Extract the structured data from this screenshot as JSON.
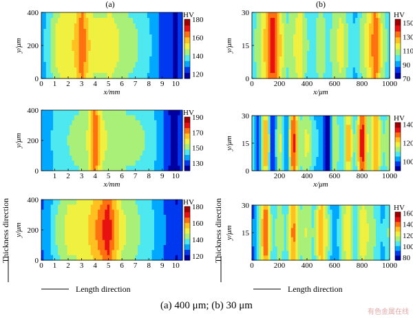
{
  "figure": {
    "labels": [
      "(a)",
      "(b)"
    ],
    "caption": "(a) 400 μm; (b) 30 μm",
    "thickness_label": "Thickness direction",
    "length_label": "Length direction",
    "watermark": "有色金属在线"
  },
  "colorscale": [
    "#0000a0",
    "#0038f0",
    "#00a8ff",
    "#4de8f0",
    "#a8f078",
    "#f0f040",
    "#ffc020",
    "#ff7010",
    "#e81010",
    "#a00000"
  ],
  "chart_data": [
    {
      "id": "a1",
      "type": "heatmap",
      "title": "",
      "xlabel": "x/mm",
      "ylabel": "y/μm",
      "xlim": [
        0,
        10.5
      ],
      "ylim": [
        0,
        400
      ],
      "xticks": [
        0,
        1,
        2,
        3,
        4,
        5,
        6,
        7,
        8,
        9,
        10
      ],
      "yticks": [
        0,
        200,
        400
      ],
      "colorbar": {
        "title": "HV",
        "range": [
          115,
          180
        ],
        "ticks": [
          120,
          140,
          160,
          180
        ]
      },
      "hardness_profile_x": [
        0,
        0.5,
        1,
        1.5,
        2,
        2.5,
        3,
        3.5,
        4,
        4.5,
        5,
        5.5,
        6,
        6.5,
        7,
        7.5,
        8,
        8.5,
        9,
        9.5,
        10,
        10.5
      ],
      "hardness_profile_HV": [
        132,
        138,
        148,
        152,
        152,
        155,
        168,
        155,
        150,
        150,
        152,
        150,
        146,
        144,
        142,
        140,
        136,
        132,
        126,
        124,
        120,
        128
      ]
    },
    {
      "id": "a2",
      "type": "heatmap",
      "title": "",
      "xlabel": "x/mm",
      "ylabel": "y/μm",
      "xlim": [
        0,
        10.5
      ],
      "ylim": [
        0,
        400
      ],
      "xticks": [
        1,
        2,
        3,
        4,
        5,
        6,
        7,
        8,
        9,
        10
      ],
      "yticks": [
        0,
        200,
        400
      ],
      "colorbar": {
        "title": "HV",
        "range": [
          120,
          190
        ],
        "ticks": [
          130,
          150,
          170,
          190
        ]
      },
      "hardness_profile_x": [
        0,
        0.5,
        1,
        1.5,
        2,
        2.5,
        3,
        3.5,
        4,
        4.5,
        5,
        5.5,
        6,
        6.5,
        7,
        7.5,
        8,
        8.5,
        9,
        9.5,
        10,
        10.5
      ],
      "hardness_profile_HV": [
        140,
        136,
        145,
        148,
        148,
        150,
        152,
        156,
        178,
        158,
        154,
        152,
        152,
        151,
        150,
        149,
        147,
        142,
        136,
        128,
        124,
        132
      ]
    },
    {
      "id": "a3",
      "type": "heatmap",
      "title": "",
      "xlabel": "",
      "ylabel": "y/μm",
      "xlim": [
        0,
        10.5
      ],
      "ylim": [
        0,
        400
      ],
      "xticks": [
        0,
        1,
        2,
        3,
        4,
        5,
        6,
        7,
        8,
        9,
        10
      ],
      "yticks": [
        0,
        200,
        400
      ],
      "colorbar": {
        "title": "HV",
        "range": [
          115,
          180
        ],
        "ticks": [
          120,
          140,
          160,
          180
        ]
      },
      "hardness_profile_x": [
        0,
        0.5,
        1,
        1.5,
        2,
        2.5,
        3,
        3.5,
        4,
        4.5,
        5,
        5.5,
        6,
        6.5,
        7,
        7.5,
        8,
        8.5,
        9,
        9.5,
        10,
        10.5
      ],
      "hardness_profile_HV": [
        128,
        132,
        140,
        146,
        150,
        151,
        152,
        154,
        160,
        166,
        172,
        160,
        150,
        146,
        144,
        140,
        138,
        134,
        130,
        126,
        122,
        124
      ]
    },
    {
      "id": "b1",
      "type": "heatmap",
      "title": "",
      "xlabel": "x/μm",
      "ylabel": "y/μm",
      "xlim": [
        0,
        1000
      ],
      "ylim": [
        0,
        30
      ],
      "xticks": [
        0,
        200,
        400,
        600,
        800,
        1000
      ],
      "yticks": [
        0,
        15,
        30
      ],
      "colorbar": {
        "title": "HV",
        "range": [
          70,
          155
        ],
        "ticks": [
          70,
          90,
          110,
          130,
          150
        ]
      },
      "hardness_profile_x": [
        0,
        50,
        100,
        150,
        200,
        250,
        300,
        350,
        400,
        450,
        500,
        550,
        600,
        650,
        700,
        750,
        800,
        850,
        900,
        950,
        1000
      ],
      "hardness_profile_HV": [
        100,
        110,
        125,
        150,
        125,
        105,
        112,
        120,
        105,
        100,
        115,
        100,
        110,
        118,
        104,
        96,
        110,
        120,
        140,
        110,
        100
      ]
    },
    {
      "id": "b2",
      "type": "heatmap",
      "title": "",
      "xlabel": "x/μm",
      "ylabel": "y/μm",
      "xlim": [
        0,
        1000
      ],
      "ylim": [
        0,
        30
      ],
      "xticks": [
        200,
        400,
        600,
        800,
        1000
      ],
      "yticks": [
        0,
        15,
        30
      ],
      "colorbar": {
        "title": "HV",
        "range": [
          90,
          142
        ],
        "ticks": [
          100,
          120,
          140
        ]
      },
      "hardness_profile_x": [
        0,
        50,
        100,
        150,
        200,
        250,
        300,
        350,
        400,
        450,
        500,
        550,
        600,
        650,
        700,
        750,
        800,
        850,
        900,
        950,
        1000
      ],
      "hardness_profile_HV": [
        110,
        98,
        130,
        92,
        120,
        98,
        136,
        112,
        118,
        108,
        104,
        90,
        118,
        106,
        126,
        108,
        138,
        112,
        128,
        110,
        116
      ]
    },
    {
      "id": "b3",
      "type": "heatmap",
      "title": "",
      "xlabel": "",
      "ylabel": "y/μm",
      "xlim": [
        0,
        1000
      ],
      "ylim": [
        0,
        30
      ],
      "xticks": [
        0,
        200,
        400,
        600,
        800,
        1000
      ],
      "yticks": [
        15,
        30
      ],
      "colorbar": {
        "title": "HV",
        "range": [
          75,
          162
        ],
        "ticks": [
          80,
          100,
          120,
          140,
          160
        ]
      },
      "hardness_profile_x": [
        0,
        50,
        100,
        150,
        200,
        250,
        300,
        350,
        400,
        450,
        500,
        550,
        600,
        650,
        700,
        750,
        800,
        850,
        900,
        950,
        1000
      ],
      "hardness_profile_HV": [
        90,
        108,
        150,
        104,
        118,
        106,
        142,
        112,
        120,
        108,
        138,
        116,
        92,
        112,
        130,
        104,
        126,
        118,
        110,
        100,
        112
      ]
    }
  ]
}
